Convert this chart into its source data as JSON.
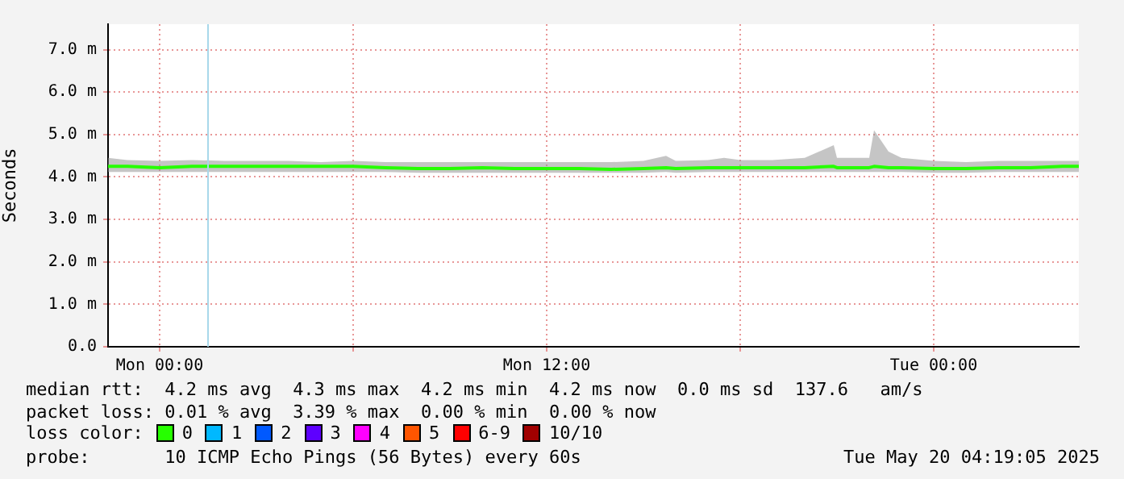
{
  "chart_data": {
    "type": "line",
    "ylabel": "Seconds",
    "x": [
      "2025-05-18T22:24",
      "2025-05-18T23:00",
      "2025-05-19T00:00",
      "2025-05-19T01:00",
      "2025-05-19T02:00",
      "2025-05-19T03:00",
      "2025-05-19T04:00",
      "2025-05-19T05:00",
      "2025-05-19T06:00",
      "2025-05-19T07:00",
      "2025-05-19T08:00",
      "2025-05-19T09:00",
      "2025-05-19T10:00",
      "2025-05-19T11:00",
      "2025-05-19T12:00",
      "2025-05-19T13:00",
      "2025-05-19T14:00",
      "2025-05-19T15:00",
      "2025-05-19T15:42",
      "2025-05-19T16:00",
      "2025-05-19T17:00",
      "2025-05-19T17:30",
      "2025-05-19T18:00",
      "2025-05-19T19:00",
      "2025-05-19T20:00",
      "2025-05-19T20:54",
      "2025-05-19T21:00",
      "2025-05-19T22:00",
      "2025-05-19T22:09",
      "2025-05-19T22:36",
      "2025-05-19T23:00",
      "2025-05-20T00:00",
      "2025-05-20T01:00",
      "2025-05-20T02:00",
      "2025-05-20T03:00",
      "2025-05-20T04:00",
      "2025-05-20T04:30"
    ],
    "xlim": [
      "2025-05-18T22:24",
      "2025-05-20T04:30"
    ],
    "xticks": [
      {
        "value": "2025-05-19T00:00",
        "label": "Mon 00:00"
      },
      {
        "value": "2025-05-19T06:00",
        "label": null
      },
      {
        "value": "2025-05-19T12:00",
        "label": "Mon 12:00"
      },
      {
        "value": "2025-05-19T18:00",
        "label": null
      },
      {
        "value": "2025-05-20T00:00",
        "label": "Tue 00:00"
      }
    ],
    "ylim": [
      0,
      7.6
    ],
    "yticks": [
      {
        "value": 0,
        "label": "0.0"
      },
      {
        "value": 1,
        "label": "1.0 m"
      },
      {
        "value": 2,
        "label": "2.0 m"
      },
      {
        "value": 3,
        "label": "3.0 m"
      },
      {
        "value": 4,
        "label": "4.0 m"
      },
      {
        "value": 5,
        "label": "5.0 m"
      },
      {
        "value": 6,
        "label": "6.0 m"
      },
      {
        "value": 7,
        "label": "7.0 m"
      }
    ],
    "series": [
      {
        "name": "0",
        "color": "#26ff00",
        "values": [
          4.25,
          4.25,
          4.22,
          4.25,
          4.25,
          4.25,
          4.25,
          4.25,
          4.25,
          4.22,
          4.2,
          4.2,
          4.22,
          4.2,
          4.2,
          4.2,
          4.18,
          4.2,
          4.22,
          4.2,
          4.22,
          4.22,
          4.22,
          4.22,
          4.22,
          4.25,
          4.22,
          4.22,
          4.25,
          4.22,
          4.22,
          4.2,
          4.2,
          4.22,
          4.22,
          4.25,
          4.25
        ],
        "lower": [
          4.12,
          4.12,
          4.12,
          4.12,
          4.12,
          4.12,
          4.12,
          4.12,
          4.12,
          4.12,
          4.1,
          4.1,
          4.1,
          4.1,
          4.1,
          4.1,
          4.1,
          4.1,
          4.12,
          4.1,
          4.12,
          4.12,
          4.12,
          4.12,
          4.12,
          4.12,
          4.12,
          4.12,
          4.12,
          4.12,
          4.12,
          4.1,
          4.1,
          4.12,
          4.12,
          4.12,
          4.12
        ],
        "upper": [
          4.45,
          4.4,
          4.38,
          4.4,
          4.38,
          4.38,
          4.38,
          4.35,
          4.38,
          4.35,
          4.35,
          4.35,
          4.35,
          4.35,
          4.35,
          4.35,
          4.35,
          4.38,
          4.5,
          4.38,
          4.4,
          4.45,
          4.4,
          4.4,
          4.45,
          4.75,
          4.45,
          4.45,
          5.1,
          4.6,
          4.45,
          4.38,
          4.35,
          4.38,
          4.38,
          4.38,
          4.38
        ]
      },
      {
        "name": "1",
        "color": "#00b8ff",
        "values": [
          null,
          null,
          null,
          null,
          null,
          null,
          null,
          null,
          null,
          null,
          null,
          null,
          null,
          null,
          null,
          null,
          null,
          null,
          null,
          null,
          null,
          null,
          null,
          null,
          null,
          null,
          null,
          null,
          null,
          null,
          null,
          null,
          null,
          null,
          null,
          null,
          null
        ]
      },
      {
        "name": "2",
        "color": "#0059ff",
        "values": [
          null,
          null,
          null,
          null,
          null,
          null,
          null,
          null,
          null,
          null,
          null,
          null,
          null,
          null,
          null,
          null,
          null,
          null,
          null,
          null,
          null,
          null,
          null,
          null,
          null,
          null,
          null,
          null,
          null,
          null,
          null,
          null,
          null,
          null,
          null,
          null,
          null
        ]
      },
      {
        "name": "3",
        "color": "#5e00ff",
        "values": [
          null,
          null,
          null,
          null,
          null,
          null,
          null,
          null,
          null,
          null,
          null,
          null,
          null,
          null,
          null,
          null,
          null,
          null,
          null,
          null,
          null,
          null,
          null,
          null,
          null,
          null,
          null,
          null,
          null,
          null,
          null,
          null,
          null,
          null,
          null,
          null,
          null
        ]
      },
      {
        "name": "4",
        "color": "#ff00ff",
        "values": [
          null,
          null,
          null,
          null,
          null,
          null,
          null,
          null,
          null,
          null,
          null,
          null,
          null,
          null,
          null,
          null,
          null,
          null,
          null,
          null,
          null,
          null,
          null,
          null,
          null,
          null,
          null,
          null,
          null,
          null,
          null,
          null,
          null,
          null,
          null,
          null,
          null
        ]
      },
      {
        "name": "5",
        "color": "#ff5500",
        "values": [
          null,
          null,
          null,
          null,
          null,
          null,
          null,
          null,
          null,
          null,
          null,
          null,
          null,
          null,
          null,
          null,
          null,
          null,
          null,
          null,
          null,
          null,
          null,
          null,
          null,
          null,
          null,
          null,
          null,
          null,
          null,
          null,
          null,
          null,
          null,
          null,
          null
        ]
      },
      {
        "name": "6-9",
        "color": "#ff0000",
        "values": [
          null,
          null,
          null,
          null,
          null,
          null,
          null,
          null,
          null,
          null,
          null,
          null,
          null,
          null,
          null,
          null,
          null,
          null,
          null,
          null,
          null,
          null,
          null,
          null,
          null,
          null,
          null,
          null,
          null,
          null,
          null,
          null,
          null,
          null,
          null,
          null,
          null
        ]
      },
      {
        "name": "10/10",
        "color": "#a10000",
        "values": [
          null,
          null,
          null,
          null,
          null,
          null,
          null,
          null,
          null,
          null,
          null,
          null,
          null,
          null,
          null,
          null,
          null,
          null,
          null,
          null,
          null,
          null,
          null,
          null,
          null,
          null,
          null,
          null,
          null,
          null,
          null,
          null,
          null,
          null,
          null,
          null,
          null
        ]
      }
    ],
    "legend": "bottom left",
    "legend_title": "loss color:",
    "grid": true,
    "marker": "none",
    "line_style": "solid",
    "ref_lines": [
      {
        "axis": "x",
        "value": "2025-05-19T01:30",
        "color": "#a8d8ea"
      }
    ],
    "annotations": [
      "median rtt:  4.2 ms avg  4.3 ms max  4.2 ms min  4.2 ms now  0.0 ms sd  137.6   am/s",
      "packet loss: 0.01 % avg  3.39 % max  0.00 % min  0.00 % now",
      "probe:       10 ICMP Echo Pings (56 Bytes) every 60s",
      "Tue May 20 04:19:05 2025"
    ]
  }
}
